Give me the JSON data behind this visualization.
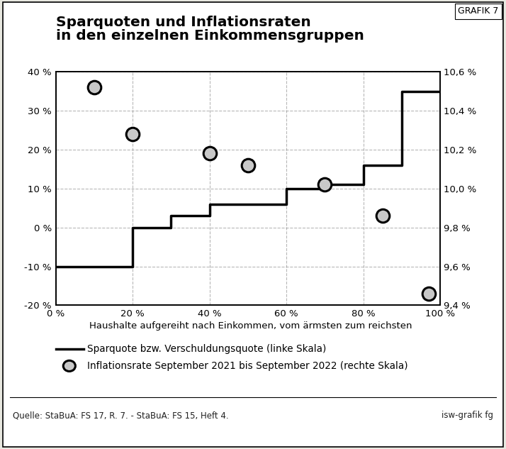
{
  "title_line1": "Sparquoten und Inflationsraten",
  "title_line2": "in den einzelnen Einkommensgruppen",
  "xlabel": "Haushalte aufgereiht nach Einkommen, vom ärmsten zum reichsten",
  "grafik_label": "GRAFIK 7",
  "source_text": "Quelle: StaBuA: FS 17, R. 7. - StaBuA: FS 15, Heft 4.",
  "source_right": "isw-grafik fg",
  "legend_line": "Sparquote bzw. Verschuldungsquote (linke Skala)",
  "legend_scatter": "Inflationsrate September 2021 bis September 2022 (rechte Skala)",
  "step_x": [
    0,
    20,
    20,
    30,
    30,
    40,
    40,
    60,
    60,
    70,
    70,
    80,
    80,
    90,
    90,
    100
  ],
  "step_y": [
    -10,
    -10,
    0,
    0,
    3,
    3,
    6,
    6,
    10,
    10,
    11,
    11,
    16,
    16,
    35,
    35
  ],
  "scatter_x": [
    10,
    20,
    40,
    50,
    70,
    85,
    97
  ],
  "scatter_y_left": [
    36,
    24,
    19,
    16,
    11,
    3,
    -17
  ],
  "xlim": [
    0,
    100
  ],
  "ylim_left": [
    -20,
    40
  ],
  "ylim_right": [
    9.4,
    10.6
  ],
  "xticks": [
    0,
    20,
    40,
    60,
    80,
    100
  ],
  "yticks_left": [
    -20,
    -10,
    0,
    10,
    20,
    30,
    40
  ],
  "yticks_right": [
    9.4,
    9.6,
    9.8,
    10.0,
    10.2,
    10.4,
    10.6
  ],
  "outer_bg": "#e8e8e0",
  "inner_bg": "#ffffff",
  "line_color": "#000000",
  "scatter_fill": "#c8c8c8",
  "scatter_edge": "#000000",
  "grid_color": "#999999"
}
